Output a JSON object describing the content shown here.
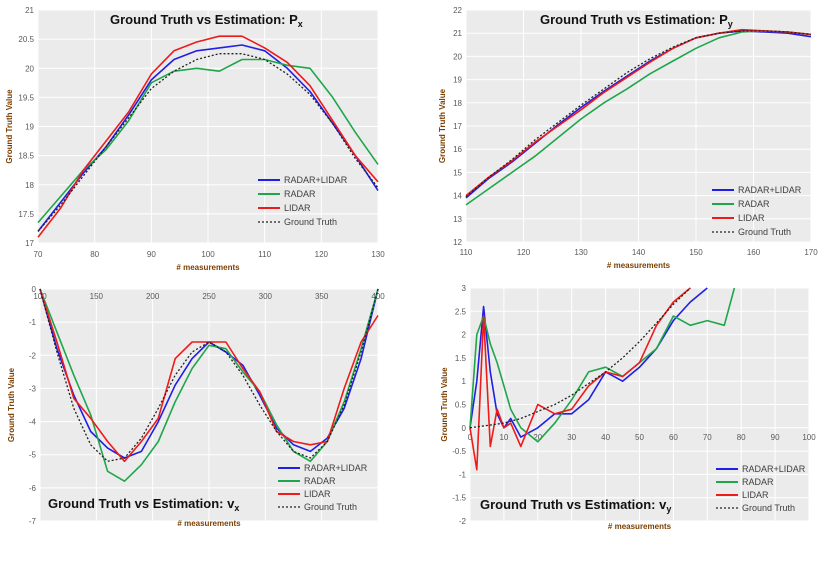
{
  "colors": {
    "radar_lidar": "#1f1fe6",
    "radar": "#1fa64a",
    "lidar": "#ef1a1a",
    "ground_truth": "#222222",
    "plot_bg": "#ebebeb",
    "grid": "#ffffff"
  },
  "chart_data": [
    {
      "id": "px",
      "type": "line",
      "title_main": "Ground Truth vs Estimation: P",
      "title_sub": "x",
      "xlabel": "# measurements",
      "ylabel": "Ground Truth Value",
      "xlim": [
        70,
        130
      ],
      "ylim": [
        17,
        21
      ],
      "xticks": [
        70,
        80,
        90,
        100,
        110,
        120,
        130
      ],
      "yticks": [
        17,
        17.5,
        18,
        18.5,
        19,
        19.5,
        20,
        20.5,
        21
      ],
      "ytick_labels": [
        "17",
        "17.5",
        "18",
        "18.5",
        "19",
        "19.5",
        "20",
        "20.5",
        "21"
      ],
      "grid": true,
      "legend_position": "bottom-right",
      "series": [
        {
          "name": "RADAR+LIDAR",
          "x": [
            70,
            74,
            78,
            82,
            86,
            90,
            94,
            98,
            102,
            106,
            110,
            114,
            118,
            122,
            126,
            130
          ],
          "y": [
            17.2,
            17.7,
            18.2,
            18.65,
            19.2,
            19.8,
            20.15,
            20.3,
            20.35,
            20.4,
            20.3,
            20.0,
            19.6,
            19.05,
            18.5,
            17.9
          ]
        },
        {
          "name": "RADAR",
          "x": [
            70,
            74,
            78,
            82,
            86,
            90,
            94,
            98,
            102,
            106,
            110,
            114,
            118,
            122,
            126,
            130
          ],
          "y": [
            17.35,
            17.8,
            18.25,
            18.6,
            19.1,
            19.75,
            19.95,
            20.0,
            19.95,
            20.15,
            20.15,
            20.05,
            20.0,
            19.5,
            18.9,
            18.35
          ]
        },
        {
          "name": "LIDAR",
          "x": [
            70,
            74,
            78,
            82,
            86,
            90,
            94,
            98,
            102,
            106,
            110,
            114,
            118,
            122,
            126,
            130
          ],
          "y": [
            17.1,
            17.6,
            18.25,
            18.75,
            19.25,
            19.9,
            20.3,
            20.45,
            20.55,
            20.55,
            20.35,
            20.1,
            19.7,
            19.1,
            18.5,
            18.05
          ]
        },
        {
          "name": "Ground Truth",
          "x": [
            70,
            74,
            78,
            82,
            86,
            90,
            94,
            98,
            102,
            106,
            110,
            114,
            118,
            122,
            126,
            130
          ],
          "y": [
            17.2,
            17.65,
            18.15,
            18.65,
            19.15,
            19.65,
            19.95,
            20.15,
            20.25,
            20.25,
            20.15,
            19.9,
            19.55,
            19.05,
            18.45,
            17.95
          ]
        }
      ]
    },
    {
      "id": "py",
      "type": "line",
      "title_main": "Ground Truth vs Estimation: P",
      "title_sub": "y",
      "xlabel": "# measurements",
      "ylabel": "Ground Truth Value",
      "xlim": [
        110,
        170
      ],
      "ylim": [
        12,
        22
      ],
      "xticks": [
        110,
        120,
        130,
        140,
        150,
        160,
        170
      ],
      "yticks": [
        12,
        13,
        14,
        15,
        16,
        17,
        18,
        19,
        20,
        21,
        22
      ],
      "ytick_labels": [
        "12",
        "13",
        "14",
        "15",
        "16",
        "17",
        "18",
        "19",
        "20",
        "21",
        "22"
      ],
      "grid": true,
      "legend_position": "bottom-right",
      "series": [
        {
          "name": "RADAR+LIDAR",
          "x": [
            110,
            114,
            118,
            122,
            126,
            130,
            134,
            138,
            142,
            146,
            150,
            154,
            158,
            162,
            166,
            170
          ],
          "y": [
            13.9,
            14.75,
            15.45,
            16.25,
            17.05,
            17.8,
            18.5,
            19.15,
            19.8,
            20.35,
            20.8,
            21.0,
            21.1,
            21.05,
            21.0,
            20.85
          ]
        },
        {
          "name": "RADAR",
          "x": [
            110,
            114,
            118,
            122,
            126,
            130,
            134,
            138,
            142,
            146,
            150,
            154,
            158,
            162,
            166,
            170
          ],
          "y": [
            13.6,
            14.3,
            15.0,
            15.7,
            16.5,
            17.3,
            18.0,
            18.6,
            19.25,
            19.8,
            20.35,
            20.8,
            21.05,
            21.1,
            21.05,
            20.95
          ]
        },
        {
          "name": "LIDAR",
          "x": [
            110,
            114,
            118,
            122,
            126,
            130,
            134,
            138,
            142,
            146,
            150,
            154,
            158,
            162,
            166,
            170
          ],
          "y": [
            14.0,
            14.8,
            15.5,
            16.3,
            17.0,
            17.7,
            18.45,
            19.1,
            19.75,
            20.35,
            20.8,
            21.0,
            21.15,
            21.1,
            21.05,
            20.95
          ]
        },
        {
          "name": "Ground Truth",
          "x": [
            110,
            114,
            118,
            122,
            126,
            130,
            134,
            138,
            142,
            146,
            150,
            154,
            158,
            162,
            166,
            170
          ],
          "y": [
            13.95,
            14.8,
            15.55,
            16.4,
            17.15,
            17.9,
            18.6,
            19.3,
            19.9,
            20.4,
            20.8,
            21.0,
            21.1,
            21.1,
            21.05,
            20.95
          ]
        }
      ]
    },
    {
      "id": "vx",
      "type": "line",
      "title_main": "Ground Truth vs Estimation: v",
      "title_sub": "x",
      "xlabel": "# measurements",
      "ylabel": "Ground Truth Value",
      "xlim": [
        100,
        400
      ],
      "ylim": [
        -7,
        0
      ],
      "xticks": [
        100,
        150,
        200,
        250,
        300,
        350,
        400
      ],
      "xtick_labels": [
        "100",
        "150",
        "200",
        "250",
        "300",
        "350",
        "400"
      ],
      "yticks": [
        0,
        -1,
        -2,
        -3,
        -4,
        -5,
        -6,
        -7
      ],
      "ytick_labels": [
        "0",
        "-1",
        "-2",
        "-3",
        "-4",
        "-5",
        "-6",
        "-7"
      ],
      "x_axis_position": "top",
      "grid": true,
      "legend_position": "bottom-right",
      "series": [
        {
          "name": "RADAR+LIDAR",
          "x": [
            100,
            115,
            130,
            145,
            160,
            175,
            190,
            205,
            220,
            235,
            250,
            265,
            280,
            295,
            310,
            325,
            340,
            355,
            370,
            385,
            400
          ],
          "y": [
            0,
            -1.8,
            -3.2,
            -4.3,
            -4.8,
            -5.1,
            -4.9,
            -4.0,
            -2.9,
            -2.1,
            -1.6,
            -1.9,
            -2.3,
            -3.2,
            -4.2,
            -4.7,
            -4.9,
            -4.5,
            -3.6,
            -2.1,
            0
          ]
        },
        {
          "name": "RADAR",
          "x": [
            100,
            115,
            130,
            145,
            160,
            175,
            190,
            205,
            220,
            235,
            250,
            265,
            280,
            295,
            310,
            325,
            340,
            355,
            370,
            385,
            400
          ],
          "y": [
            0,
            -1.3,
            -2.6,
            -3.8,
            -5.5,
            -5.8,
            -5.3,
            -4.6,
            -3.4,
            -2.4,
            -1.7,
            -1.8,
            -2.5,
            -3.1,
            -4.1,
            -4.9,
            -5.2,
            -4.6,
            -3.4,
            -1.8,
            0
          ]
        },
        {
          "name": "LIDAR",
          "x": [
            100,
            115,
            130,
            145,
            160,
            175,
            190,
            205,
            220,
            235,
            250,
            265,
            280,
            295,
            310,
            325,
            340,
            355,
            370,
            385,
            400
          ],
          "y": [
            0,
            -1.6,
            -3.3,
            -3.9,
            -4.6,
            -5.2,
            -4.6,
            -3.9,
            -2.1,
            -1.6,
            -1.6,
            -1.6,
            -2.4,
            -3.1,
            -4.3,
            -4.6,
            -4.7,
            -4.6,
            -3.0,
            -1.6,
            -0.8
          ]
        },
        {
          "name": "Ground Truth",
          "x": [
            100,
            115,
            130,
            145,
            160,
            175,
            190,
            205,
            220,
            235,
            250,
            265,
            280,
            295,
            310,
            325,
            340,
            355,
            370,
            385,
            400
          ],
          "y": [
            0,
            -1.9,
            -3.6,
            -4.7,
            -5.2,
            -5.1,
            -4.5,
            -3.6,
            -2.6,
            -1.9,
            -1.6,
            -1.9,
            -2.6,
            -3.5,
            -4.3,
            -4.9,
            -5.1,
            -4.6,
            -3.5,
            -1.9,
            0
          ]
        }
      ]
    },
    {
      "id": "vy",
      "type": "line",
      "title_main": "Ground Truth vs Estimation: v",
      "title_sub": "y",
      "xlabel": "# measurements",
      "ylabel": "Ground Truth Value",
      "xlim": [
        0,
        100
      ],
      "ylim": [
        -2,
        3
      ],
      "xticks": [
        0,
        10,
        20,
        30,
        40,
        50,
        60,
        70,
        80,
        90,
        100
      ],
      "yticks": [
        3,
        2.5,
        2,
        1.5,
        1,
        0.5,
        0,
        -0.5,
        -1,
        -1.5,
        -2
      ],
      "ytick_labels": [
        "3",
        "2.5",
        "2",
        "1.5",
        "1",
        "0.5",
        "0",
        "-0.5",
        "-1",
        "-1.5",
        "-2"
      ],
      "grid": true,
      "legend_position": "bottom-right",
      "series": [
        {
          "name": "RADAR+LIDAR",
          "x": [
            0,
            2,
            4,
            6,
            8,
            10,
            12,
            15,
            20,
            25,
            30,
            35,
            40,
            45,
            50,
            55,
            60,
            65,
            70
          ],
          "y": [
            0,
            1.0,
            2.6,
            1.2,
            0.3,
            0.0,
            0.2,
            -0.2,
            0.0,
            0.3,
            0.3,
            0.6,
            1.2,
            1.0,
            1.3,
            1.7,
            2.3,
            2.7,
            3.0
          ]
        },
        {
          "name": "RADAR",
          "x": [
            0,
            2,
            4,
            6,
            8,
            10,
            12,
            15,
            20,
            25,
            30,
            35,
            40,
            45,
            50,
            55,
            60,
            65,
            70,
            75,
            78
          ],
          "y": [
            0,
            2.0,
            2.4,
            1.8,
            1.4,
            0.9,
            0.4,
            0.0,
            -0.3,
            0.1,
            0.6,
            1.2,
            1.3,
            1.1,
            1.4,
            1.7,
            2.4,
            2.2,
            2.3,
            2.2,
            3.0
          ]
        },
        {
          "name": "LIDAR",
          "x": [
            0,
            2,
            4,
            6,
            8,
            10,
            12,
            15,
            20,
            25,
            30,
            35,
            40,
            45,
            50,
            55,
            60,
            65
          ],
          "y": [
            0,
            -0.9,
            2.4,
            -0.4,
            0.4,
            0.0,
            0.1,
            -0.4,
            0.5,
            0.3,
            0.4,
            0.9,
            1.2,
            1.1,
            1.4,
            2.2,
            2.7,
            3.0
          ]
        },
        {
          "name": "Ground Truth",
          "x": [
            0,
            5,
            10,
            15,
            20,
            25,
            30,
            35,
            40,
            45,
            50,
            55,
            60,
            65
          ],
          "y": [
            0,
            0.05,
            0.1,
            0.2,
            0.35,
            0.5,
            0.7,
            0.95,
            1.2,
            1.5,
            1.85,
            2.25,
            2.65,
            3.0
          ]
        }
      ]
    }
  ]
}
